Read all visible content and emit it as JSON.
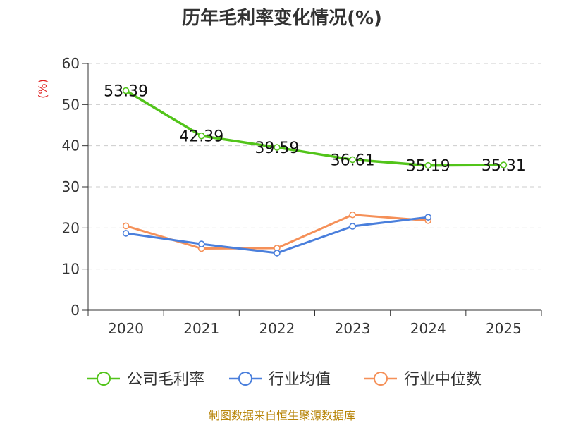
{
  "chart_data": {
    "type": "line",
    "title": "历年毛利率变化情况(%)",
    "ylabel": "(%)",
    "xlabel": "",
    "categories": [
      "2020",
      "2021",
      "2022",
      "2023",
      "2024",
      "2025"
    ],
    "ylim": [
      0,
      60
    ],
    "yticks": [
      0,
      10,
      20,
      30,
      40,
      50,
      60
    ],
    "grid": true,
    "legend_position": "bottom",
    "series": [
      {
        "name": "公司毛利率",
        "color": "#52c41a",
        "values": [
          53.39,
          42.39,
          39.59,
          36.61,
          35.19,
          35.31
        ],
        "labels": [
          "53.39",
          "42.39",
          "39.59",
          "36.61",
          "35.19",
          "35.31"
        ]
      },
      {
        "name": "行业均值",
        "color": "#4a7fdc",
        "values": [
          18.7,
          16.1,
          13.9,
          20.4,
          22.6,
          null
        ]
      },
      {
        "name": "行业中位数",
        "color": "#f59058",
        "values": [
          20.5,
          15.0,
          15.1,
          23.2,
          21.8,
          null
        ]
      }
    ],
    "source": "制图数据来自恒生聚源数据库"
  }
}
